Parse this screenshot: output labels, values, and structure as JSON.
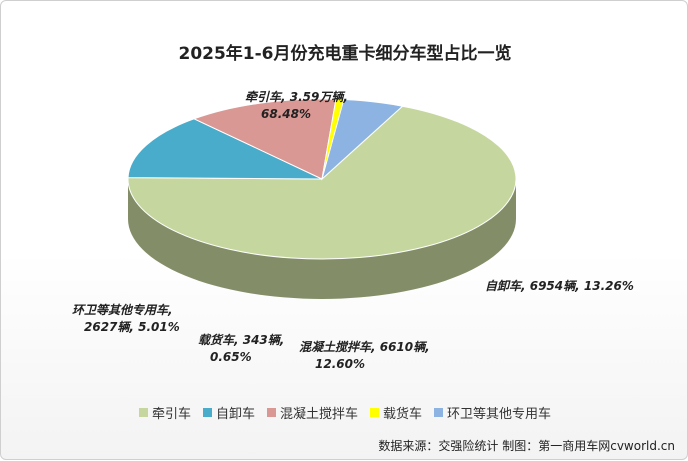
{
  "chart_data": {
    "type": "pie",
    "style": "3d",
    "title": "2025年1-6月份充电重卡细分车型占比一览",
    "slices": [
      {
        "name": "牵引车",
        "percent": 68.48,
        "color": "#c5d79e",
        "label_line1": "牵引车, 3.59万辆,",
        "label_line2": "68.48%"
      },
      {
        "name": "自卸车",
        "percent": 13.26,
        "color": "#4aaccb",
        "label_line1": "自卸车, 6954辆, 13.26%",
        "label_line2": ""
      },
      {
        "name": "混凝土搅拌车",
        "percent": 12.6,
        "color": "#d99894",
        "label_line1": "混凝土搅拌车, 6610辆,",
        "label_line2": "12.60%"
      },
      {
        "name": "载货车",
        "percent": 0.65,
        "color": "#ffff00",
        "label_line1": "载货车, 343辆,",
        "label_line2": "0.65%"
      },
      {
        "name": "环卫等其他专用车",
        "percent": 5.01,
        "color": "#8db3e2",
        "label_line1": "环卫等其他专用车,",
        "label_line2": "2627辆, 5.01%"
      }
    ],
    "legend_position": "bottom"
  },
  "source_note": "数据来源：交强险统计  制图：第一商用车网cvworld.cn"
}
